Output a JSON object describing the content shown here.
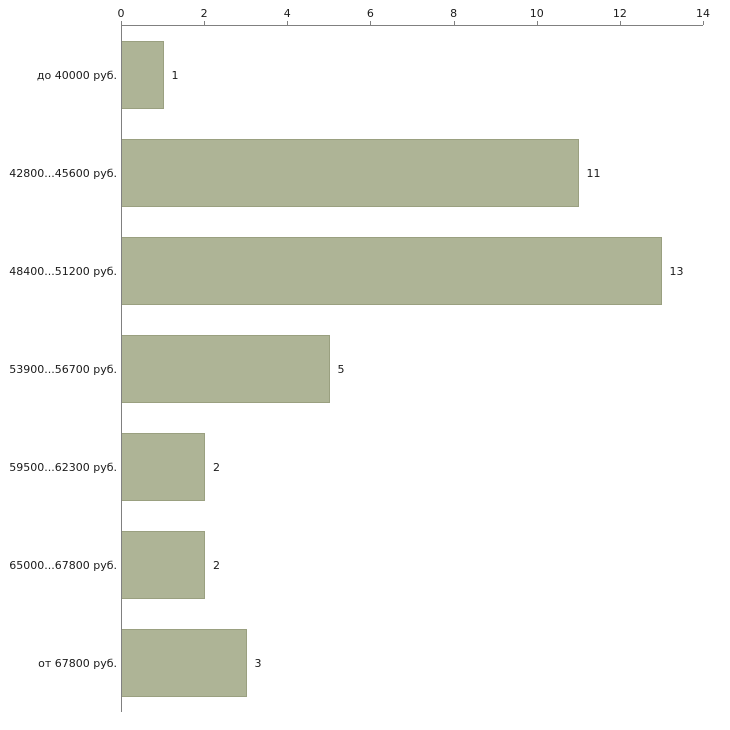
{
  "chart_data": {
    "type": "bar",
    "orientation": "horizontal",
    "title": "",
    "xlabel": "",
    "ylabel": "",
    "categories": [
      "до 40000 руб.",
      "42800...45600 руб.",
      "48400...51200 руб.",
      "53900...56700 руб.",
      "59500...62300 руб.",
      "65000...67800 руб.",
      "от 67800 руб."
    ],
    "values": [
      1,
      11,
      13,
      5,
      2,
      2,
      3
    ],
    "xlim": [
      0,
      14
    ],
    "ticks": [
      0,
      2,
      4,
      6,
      8,
      10,
      12,
      14
    ],
    "grid": "off",
    "legend": "none",
    "bar_color": "#aeb496",
    "bar_border_color": "#9aa080",
    "axis_color": "#808080",
    "background_color": "#ffffff"
  }
}
